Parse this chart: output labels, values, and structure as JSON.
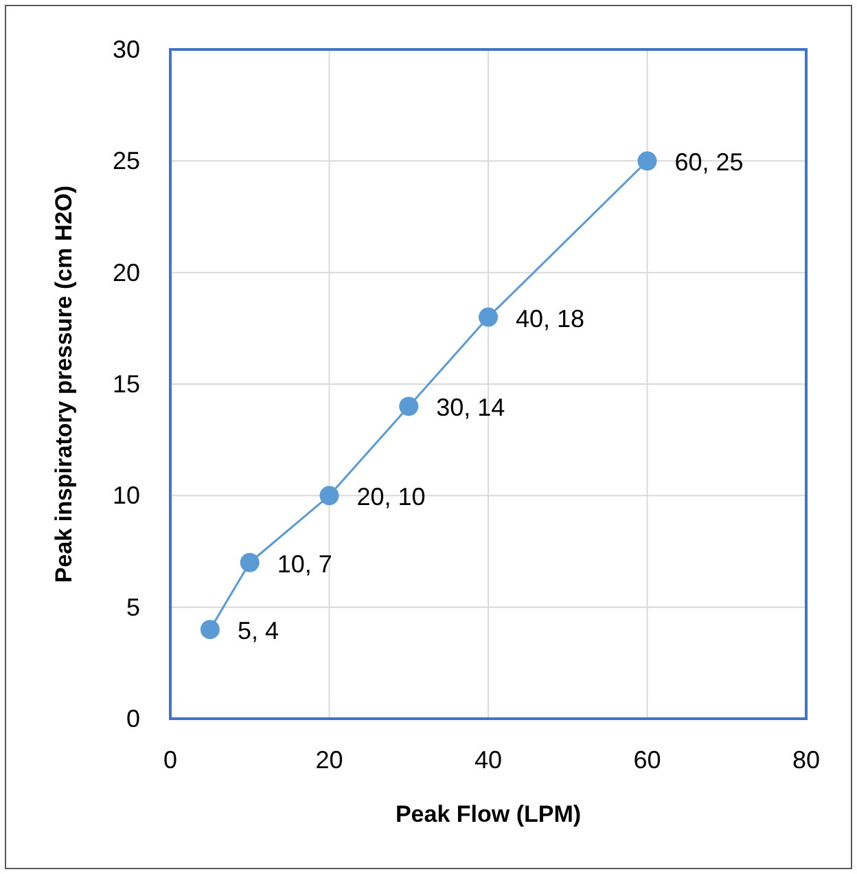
{
  "chart_data": {
    "type": "scatter",
    "xlabel": "Peak Flow (LPM)",
    "ylabel": "Peak inspiratory pressure (cm H2O)",
    "x": [
      5,
      10,
      20,
      30,
      40,
      60
    ],
    "series": [
      {
        "type": "line",
        "color": "#5b9bd5",
        "values": [
          4,
          7,
          10,
          14,
          18,
          25
        ],
        "value_labels": [
          "5, 4",
          "10, 7",
          "20, 10",
          "30, 14",
          "40, 18",
          "60, 25"
        ]
      }
    ],
    "xlim": [
      0,
      80
    ],
    "xticks": [
      0,
      20,
      40,
      60,
      80
    ],
    "ylim": [
      0,
      30
    ],
    "yticks": [
      0,
      5,
      10,
      15,
      20,
      25,
      30
    ],
    "grid": true,
    "marker": "circle",
    "line_style": "solid"
  }
}
